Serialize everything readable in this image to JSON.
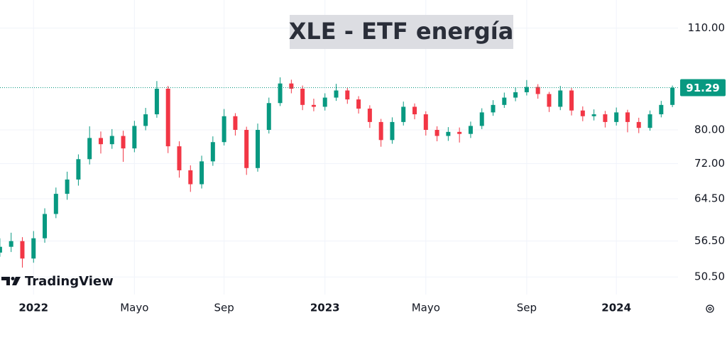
{
  "chart_data": {
    "type": "candlestick",
    "title": "XLE - ETF energía",
    "brand": "TradingView",
    "categories": [
      null,
      null,
      null,
      "2022",
      null,
      null,
      null,
      null,
      null,
      null,
      null,
      null,
      "Mayo",
      null,
      null,
      null,
      null,
      null,
      null,
      null,
      "Sep",
      null,
      null,
      null,
      null,
      null,
      null,
      null,
      null,
      "2023",
      null,
      null,
      null,
      null,
      null,
      null,
      null,
      null,
      "Mayo",
      null,
      null,
      null,
      null,
      null,
      null,
      null,
      null,
      "Sep",
      null,
      null,
      null,
      null,
      null,
      null,
      null,
      "2024",
      null,
      null,
      null,
      null,
      null
    ],
    "open": [
      54.5,
      55.5,
      56.5,
      53.5,
      57.0,
      61.5,
      65.5,
      68.5,
      73.0,
      78.0,
      76.5,
      78.5,
      75.5,
      81.0,
      84.0,
      91.0,
      76.0,
      70.5,
      67.5,
      72.5,
      77.0,
      83.5,
      80.0,
      71.0,
      80.0,
      87.0,
      92.5,
      91.0,
      86.5,
      86.0,
      88.5,
      90.5,
      88.0,
      85.5,
      82.0,
      77.5,
      82.0,
      86.0,
      84.0,
      80.0,
      78.5,
      79.5,
      79.0,
      81.0,
      84.5,
      86.5,
      88.5,
      90.0,
      91.5,
      89.5,
      86.0,
      90.5,
      85.0,
      83.5,
      84.0,
      82.0,
      84.5,
      82.0,
      80.5,
      84.0,
      86.5
    ],
    "high": [
      57.0,
      58.0,
      57.2,
      58.3,
      62.6,
      66.8,
      70.2,
      74.1,
      80.9,
      79.6,
      80.2,
      79.8,
      82.3,
      85.7,
      93.2,
      91.8,
      77.2,
      71.6,
      73.8,
      78.4,
      85.4,
      84.3,
      80.8,
      81.6,
      88.5,
      94.3,
      93.6,
      91.9,
      88.2,
      89.7,
      92.4,
      91.3,
      88.9,
      86.4,
      82.8,
      83.2,
      87.4,
      86.9,
      84.8,
      80.9,
      80.7,
      80.6,
      82.1,
      85.6,
      87.8,
      89.9,
      91.4,
      93.5,
      92.3,
      90.1,
      91.8,
      91.2,
      86.1,
      85.3,
      84.9,
      85.8,
      85.2,
      83.1,
      85.0,
      87.6,
      91.9
    ],
    "low": [
      53.8,
      54.6,
      52.0,
      52.8,
      56.2,
      60.7,
      64.3,
      67.2,
      71.8,
      74.3,
      75.4,
      72.4,
      74.6,
      79.9,
      83.1,
      74.4,
      68.9,
      65.9,
      66.6,
      71.5,
      76.2,
      78.6,
      69.5,
      70.2,
      79.1,
      86.2,
      89.7,
      85.1,
      84.8,
      85.0,
      87.6,
      86.8,
      84.2,
      80.5,
      75.9,
      76.6,
      81.1,
      82.7,
      78.6,
      77.2,
      77.3,
      76.9,
      78.0,
      80.2,
      83.6,
      85.7,
      87.5,
      89.1,
      88.2,
      84.6,
      85.1,
      83.7,
      82.2,
      82.4,
      80.6,
      81.1,
      79.4,
      79.2,
      79.8,
      83.2,
      85.9
    ],
    "close": [
      55.5,
      56.5,
      53.5,
      57.0,
      61.5,
      65.5,
      68.5,
      73.0,
      78.0,
      76.5,
      78.5,
      75.5,
      81.0,
      84.0,
      91.0,
      76.0,
      70.5,
      67.5,
      72.5,
      77.0,
      83.5,
      80.0,
      71.0,
      80.0,
      87.0,
      92.5,
      91.0,
      86.5,
      86.0,
      88.5,
      90.5,
      88.0,
      85.5,
      82.0,
      77.5,
      82.0,
      86.0,
      84.0,
      80.0,
      78.5,
      79.5,
      79.0,
      81.0,
      84.5,
      86.5,
      88.5,
      90.0,
      91.5,
      89.5,
      86.0,
      90.5,
      85.0,
      83.5,
      84.0,
      82.0,
      84.5,
      82.0,
      80.5,
      84.0,
      86.5,
      91.29
    ],
    "up_color": "#089981",
    "down_color": "#f23645",
    "log_scale": true,
    "ylim": [
      47.8,
      120.1
    ],
    "yticks": [
      {
        "value": 50.5,
        "label": "50.50"
      },
      {
        "value": 56.5,
        "label": "56.50"
      },
      {
        "value": 64.5,
        "label": "64.50"
      },
      {
        "value": 72,
        "label": "72.00"
      },
      {
        "value": 80,
        "label": "80.00"
      },
      {
        "value": 110,
        "label": "110.00"
      }
    ],
    "grid": true
  }
}
